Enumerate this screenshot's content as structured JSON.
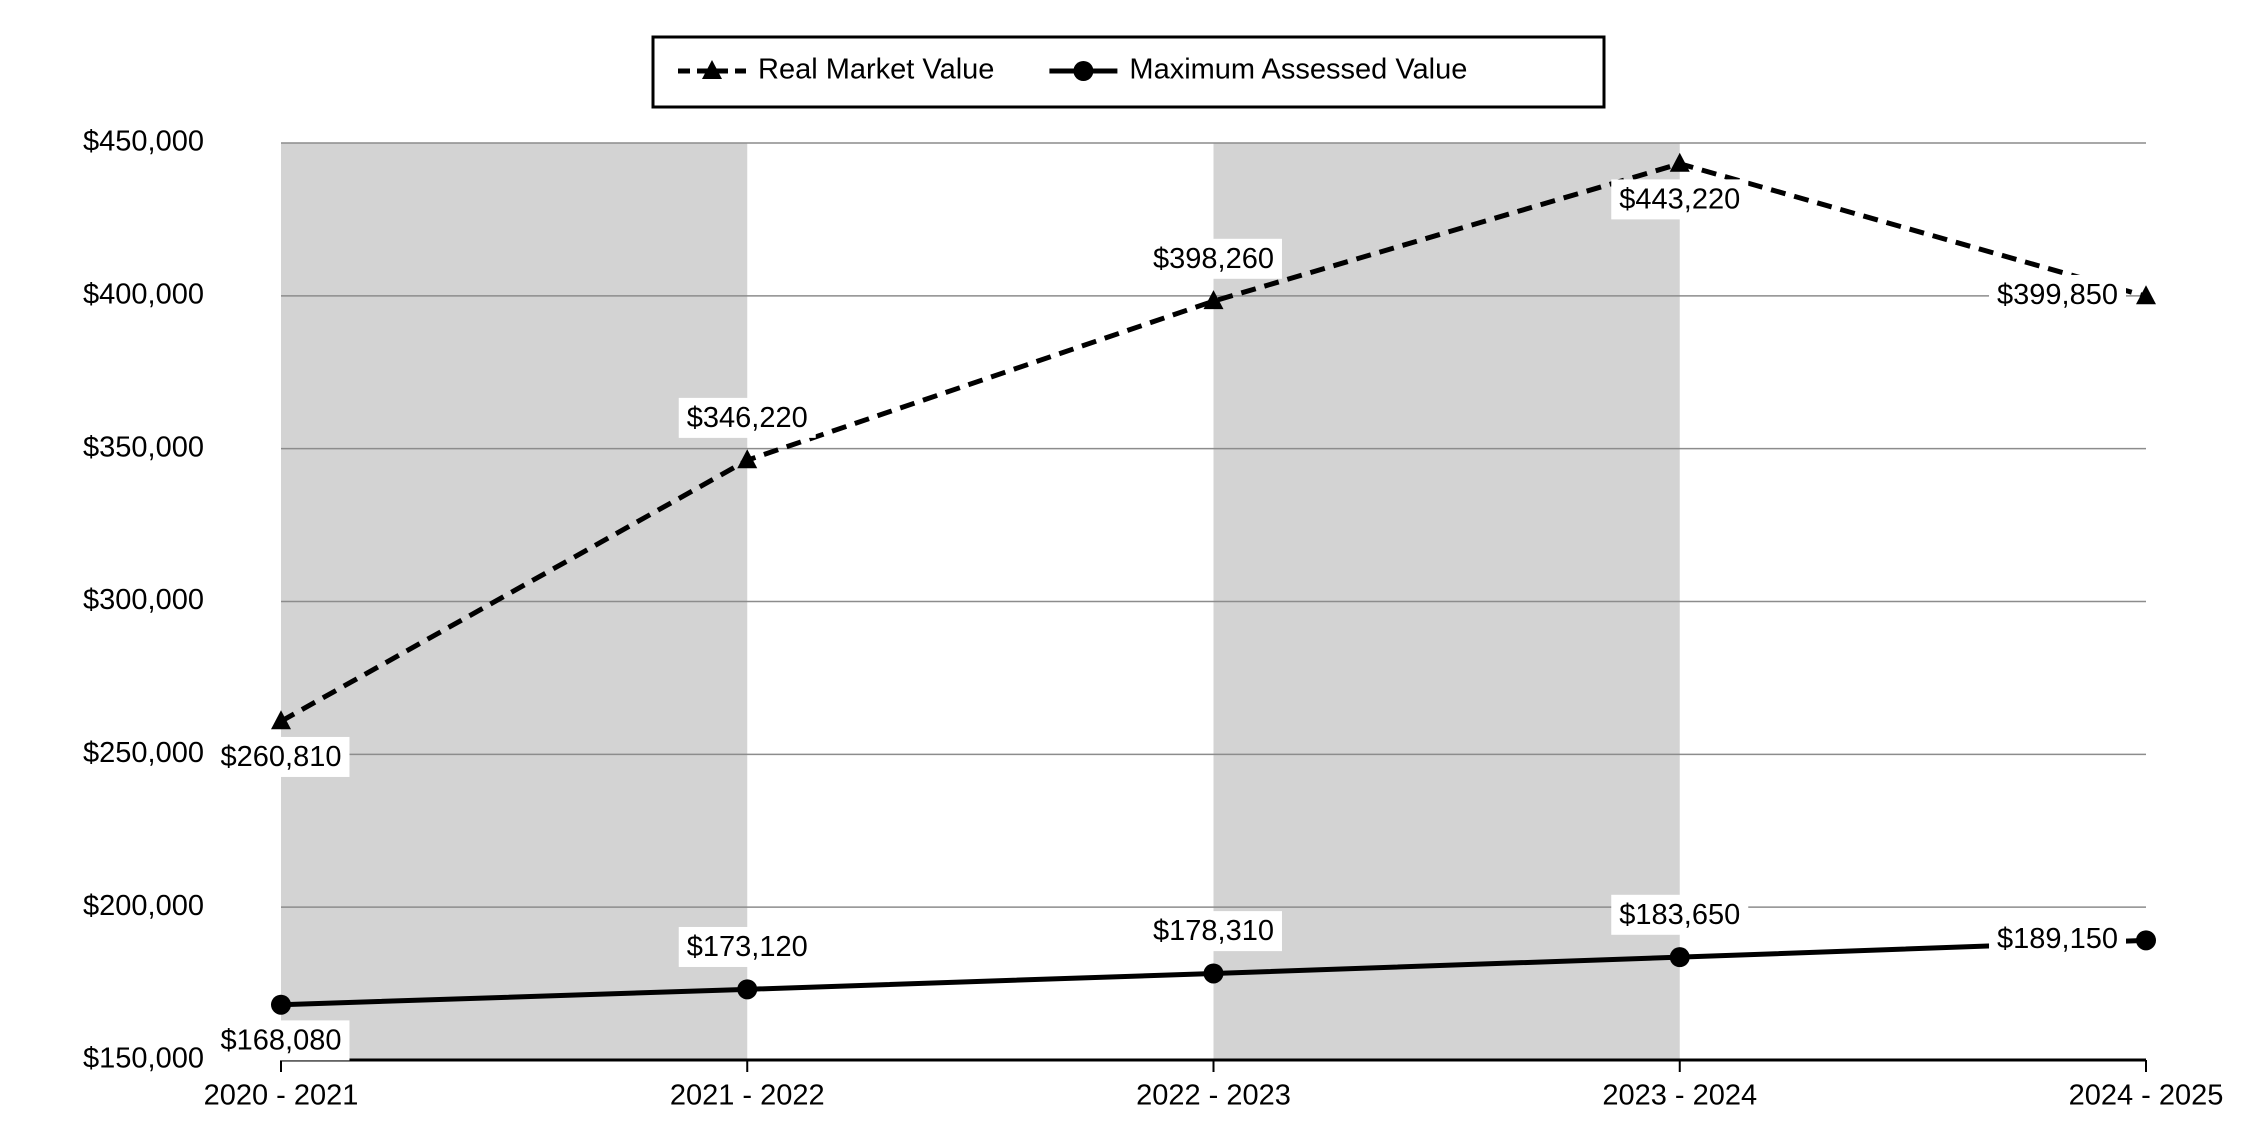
{
  "chart_data": {
    "type": "line",
    "categories": [
      "2020 - 2021",
      "2021 - 2022",
      "2022 - 2023",
      "2023 - 2024",
      "2024 - 2025"
    ],
    "series": [
      {
        "name": "Real Market Value",
        "color": "#000000",
        "dashed": true,
        "marker": "triangle",
        "values": [
          260810,
          346220,
          398260,
          443220,
          399850
        ],
        "value_labels": [
          "$260,810",
          "$346,220",
          "$398,260",
          "$443,220",
          "$399,850"
        ]
      },
      {
        "name": "Maximum Assessed Value",
        "color": "#000000",
        "dashed": false,
        "marker": "circle",
        "values": [
          168080,
          173120,
          178310,
          183650,
          189150
        ],
        "value_labels": [
          "$168,080",
          "$173,120",
          "$178,310",
          "$183,650",
          "$189,150"
        ]
      }
    ],
    "ylim": [
      150000,
      450000
    ],
    "yticks": [
      {
        "value": 150000,
        "label": "$150,000"
      },
      {
        "value": 200000,
        "label": "$200,000"
      },
      {
        "value": 250000,
        "label": "$250,000"
      },
      {
        "value": 300000,
        "label": "$300,000"
      },
      {
        "value": 350000,
        "label": "$350,000"
      },
      {
        "value": 400000,
        "label": "$400,000"
      },
      {
        "value": 450000,
        "label": "$450,000"
      }
    ],
    "grid": true,
    "legend": "top"
  }
}
